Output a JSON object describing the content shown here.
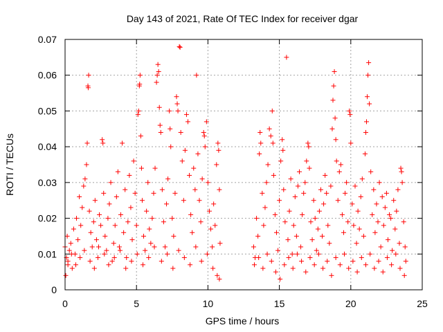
{
  "chart_data": {
    "type": "scatter",
    "title": "Day 143 of 2021, Rate Of TEC Index for receiver dgar",
    "xlabel": "GPS time / hours",
    "ylabel": "ROTI / TECUs",
    "xlim": [
      0,
      25
    ],
    "ylim": [
      0,
      0.07
    ],
    "x_ticks": [
      0,
      5,
      10,
      15,
      20,
      25
    ],
    "x_tick_labels": [
      "0",
      "5",
      "10",
      "15",
      "20",
      "25"
    ],
    "y_ticks": [
      0,
      0.01,
      0.02,
      0.03,
      0.04,
      0.05,
      0.06,
      0.07
    ],
    "y_tick_labels": [
      "0",
      "0.01",
      "0.02",
      "0.03",
      "0.04",
      "0.05",
      "0.06",
      "0.07"
    ],
    "grid": true,
    "marker": "+",
    "marker_color": "#ff0000",
    "series": [
      {
        "points": [
          [
            0.0,
            0.012
          ],
          [
            0.05,
            0.004
          ],
          [
            0.1,
            0.009
          ],
          [
            0.15,
            0.015
          ],
          [
            0.2,
            0.007
          ],
          [
            0.3,
            0.011
          ],
          [
            0.4,
            0.013
          ],
          [
            0.5,
            0.006
          ],
          [
            0.6,
            0.017
          ],
          [
            0.7,
            0.01
          ],
          [
            0.8,
            0.02
          ],
          [
            0.9,
            0.014
          ],
          [
            1.0,
            0.026
          ],
          [
            1.1,
            0.018
          ],
          [
            1.2,
            0.023
          ],
          [
            1.3,
            0.029
          ],
          [
            1.4,
            0.031
          ],
          [
            1.5,
            0.035
          ],
          [
            1.55,
            0.041
          ],
          [
            1.6,
            0.057
          ],
          [
            1.62,
            0.0565
          ],
          [
            1.65,
            0.06
          ],
          [
            1.7,
            0.022
          ],
          [
            1.8,
            0.016
          ],
          [
            1.9,
            0.012
          ],
          [
            2.0,
            0.019
          ],
          [
            2.1,
            0.025
          ],
          [
            2.2,
            0.014
          ],
          [
            2.3,
            0.009
          ],
          [
            2.4,
            0.021
          ],
          [
            2.5,
            0.018
          ],
          [
            2.6,
            0.042
          ],
          [
            2.65,
            0.041
          ],
          [
            2.7,
            0.027
          ],
          [
            2.8,
            0.015
          ],
          [
            2.9,
            0.011
          ],
          [
            3.0,
            0.02
          ],
          [
            3.1,
            0.024
          ],
          [
            3.2,
            0.03
          ],
          [
            3.3,
            0.008
          ],
          [
            3.4,
            0.013
          ],
          [
            3.5,
            0.018
          ],
          [
            3.6,
            0.026
          ],
          [
            3.7,
            0.033
          ],
          [
            3.8,
            0.012
          ],
          [
            3.9,
            0.021
          ],
          [
            4.0,
            0.041
          ],
          [
            4.1,
            0.016
          ],
          [
            4.2,
            0.028
          ],
          [
            4.3,
            0.009
          ],
          [
            4.4,
            0.019
          ],
          [
            4.5,
            0.032
          ],
          [
            4.6,
            0.023
          ],
          [
            4.7,
            0.014
          ],
          [
            4.8,
            0.036
          ],
          [
            4.9,
            0.027
          ],
          [
            5.0,
            0.018
          ],
          [
            5.1,
            0.049
          ],
          [
            5.15,
            0.05
          ],
          [
            5.2,
            0.057
          ],
          [
            5.22,
            0.0575
          ],
          [
            5.25,
            0.06
          ],
          [
            5.3,
            0.043
          ],
          [
            5.35,
            0.034
          ],
          [
            5.4,
            0.025
          ],
          [
            5.5,
            0.015
          ],
          [
            5.6,
            0.011
          ],
          [
            5.7,
            0.022
          ],
          [
            5.8,
            0.03
          ],
          [
            5.9,
            0.017
          ],
          [
            6.0,
            0.013
          ],
          [
            6.1,
            0.02
          ],
          [
            6.2,
            0.027
          ],
          [
            6.3,
            0.034
          ],
          [
            6.4,
            0.058
          ],
          [
            6.45,
            0.06
          ],
          [
            6.5,
            0.063
          ],
          [
            6.55,
            0.061
          ],
          [
            6.6,
            0.051
          ],
          [
            6.65,
            0.046
          ],
          [
            6.7,
            0.044
          ],
          [
            6.8,
            0.028
          ],
          [
            6.9,
            0.019
          ],
          [
            7.0,
            0.012
          ],
          [
            7.1,
            0.024
          ],
          [
            7.2,
            0.031
          ],
          [
            7.3,
            0.05
          ],
          [
            7.35,
            0.045
          ],
          [
            7.4,
            0.04
          ],
          [
            7.5,
            0.02
          ],
          [
            7.6,
            0.015
          ],
          [
            7.7,
            0.027
          ],
          [
            7.8,
            0.054
          ],
          [
            7.85,
            0.052
          ],
          [
            7.9,
            0.05
          ],
          [
            8.0,
            0.068
          ],
          [
            8.05,
            0.0678
          ],
          [
            8.1,
            0.044
          ],
          [
            8.2,
            0.036
          ],
          [
            8.3,
            0.025
          ],
          [
            8.4,
            0.039
          ],
          [
            8.5,
            0.049
          ],
          [
            8.6,
            0.047
          ],
          [
            8.7,
            0.032
          ],
          [
            8.8,
            0.021
          ],
          [
            8.9,
            0.016
          ],
          [
            9.0,
            0.034
          ],
          [
            9.1,
            0.028
          ],
          [
            9.2,
            0.06
          ],
          [
            9.3,
            0.038
          ],
          [
            9.4,
            0.025
          ],
          [
            9.5,
            0.019
          ],
          [
            9.6,
            0.031
          ],
          [
            9.7,
            0.044
          ],
          [
            9.75,
            0.043
          ],
          [
            9.8,
            0.04
          ],
          [
            9.9,
            0.047
          ],
          [
            10.0,
            0.03
          ],
          [
            10.1,
            0.022
          ],
          [
            10.2,
            0.017
          ],
          [
            10.3,
            0.012
          ],
          [
            10.4,
            0.024
          ],
          [
            10.5,
            0.018
          ],
          [
            10.6,
            0.035
          ],
          [
            10.7,
            0.041
          ],
          [
            10.75,
            0.039
          ],
          [
            10.8,
            0.028
          ],
          [
            10.85,
            0.013
          ],
          [
            0.2,
            0.008
          ],
          [
            0.45,
            0.01
          ],
          [
            0.75,
            0.007
          ],
          [
            1.05,
            0.009
          ],
          [
            1.35,
            0.011
          ],
          [
            1.75,
            0.008
          ],
          [
            2.05,
            0.006
          ],
          [
            2.35,
            0.012
          ],
          [
            2.75,
            0.01
          ],
          [
            3.05,
            0.007
          ],
          [
            3.45,
            0.009
          ],
          [
            3.85,
            0.011
          ],
          [
            4.25,
            0.006
          ],
          [
            4.65,
            0.008
          ],
          [
            5.05,
            0.01
          ],
          [
            5.45,
            0.007
          ],
          [
            5.85,
            0.009
          ],
          [
            6.25,
            0.012
          ],
          [
            6.75,
            0.008
          ],
          [
            7.15,
            0.01
          ],
          [
            7.55,
            0.006
          ],
          [
            7.95,
            0.011
          ],
          [
            8.35,
            0.009
          ],
          [
            8.75,
            0.007
          ],
          [
            9.15,
            0.012
          ],
          [
            9.55,
            0.008
          ],
          [
            9.95,
            0.01
          ],
          [
            10.35,
            0.006
          ],
          [
            10.65,
            0.004
          ],
          [
            10.8,
            0.003
          ],
          [
            13.2,
            0.012
          ],
          [
            13.3,
            0.009
          ],
          [
            13.4,
            0.02
          ],
          [
            13.5,
            0.015
          ],
          [
            13.6,
            0.038
          ],
          [
            13.65,
            0.044
          ],
          [
            13.7,
            0.041
          ],
          [
            13.8,
            0.027
          ],
          [
            13.9,
            0.018
          ],
          [
            14.0,
            0.023
          ],
          [
            14.1,
            0.03
          ],
          [
            14.2,
            0.035
          ],
          [
            14.3,
            0.045
          ],
          [
            14.4,
            0.043
          ],
          [
            14.5,
            0.05
          ],
          [
            14.55,
            0.041
          ],
          [
            14.6,
            0.032
          ],
          [
            14.7,
            0.021
          ],
          [
            14.8,
            0.016
          ],
          [
            14.9,
            0.011
          ],
          [
            15.0,
            0.025
          ],
          [
            15.1,
            0.036
          ],
          [
            15.2,
            0.042
          ],
          [
            15.25,
            0.039
          ],
          [
            15.3,
            0.028
          ],
          [
            15.4,
            0.019
          ],
          [
            15.5,
            0.065
          ],
          [
            15.6,
            0.014
          ],
          [
            15.7,
            0.022
          ],
          [
            15.8,
            0.031
          ],
          [
            15.9,
            0.01
          ],
          [
            16.0,
            0.018
          ],
          [
            16.1,
            0.026
          ],
          [
            16.2,
            0.015
          ],
          [
            16.3,
            0.029
          ],
          [
            16.4,
            0.033
          ],
          [
            16.5,
            0.012
          ],
          [
            16.6,
            0.021
          ],
          [
            16.7,
            0.027
          ],
          [
            16.8,
            0.03
          ],
          [
            16.9,
            0.036
          ],
          [
            17.0,
            0.041
          ],
          [
            17.05,
            0.04
          ],
          [
            17.1,
            0.034
          ],
          [
            17.2,
            0.019
          ],
          [
            17.3,
            0.014
          ],
          [
            17.4,
            0.025
          ],
          [
            17.5,
            0.02
          ],
          [
            17.6,
            0.011
          ],
          [
            17.7,
            0.017
          ],
          [
            17.8,
            0.022
          ],
          [
            17.9,
            0.028
          ],
          [
            18.0,
            0.015
          ],
          [
            18.1,
            0.024
          ],
          [
            18.2,
            0.032
          ],
          [
            18.3,
            0.027
          ],
          [
            18.4,
            0.018
          ],
          [
            18.5,
            0.013
          ],
          [
            18.6,
            0.029
          ],
          [
            18.7,
            0.045
          ],
          [
            18.75,
            0.053
          ],
          [
            18.8,
            0.057
          ],
          [
            18.85,
            0.061
          ],
          [
            18.9,
            0.048
          ],
          [
            18.95,
            0.042
          ],
          [
            19.0,
            0.036
          ],
          [
            19.1,
            0.025
          ],
          [
            19.2,
            0.033
          ],
          [
            19.3,
            0.035
          ],
          [
            19.4,
            0.021
          ],
          [
            19.5,
            0.016
          ],
          [
            19.6,
            0.027
          ],
          [
            19.7,
            0.03
          ],
          [
            19.8,
            0.019
          ],
          [
            19.9,
            0.05
          ],
          [
            19.95,
            0.049
          ],
          [
            20.0,
            0.041
          ],
          [
            20.1,
            0.024
          ],
          [
            20.2,
            0.018
          ],
          [
            20.3,
            0.029
          ],
          [
            20.4,
            0.013
          ],
          [
            20.5,
            0.022
          ],
          [
            20.6,
            0.017
          ],
          [
            20.7,
            0.026
          ],
          [
            20.8,
            0.031
          ],
          [
            20.9,
            0.015
          ],
          [
            21.0,
            0.038
          ],
          [
            21.05,
            0.044
          ],
          [
            21.1,
            0.047
          ],
          [
            21.15,
            0.054
          ],
          [
            21.2,
            0.06
          ],
          [
            21.25,
            0.0635
          ],
          [
            21.3,
            0.052
          ],
          [
            21.4,
            0.033
          ],
          [
            21.5,
            0.021
          ],
          [
            21.6,
            0.028
          ],
          [
            21.7,
            0.016
          ],
          [
            21.8,
            0.024
          ],
          [
            21.9,
            0.019
          ],
          [
            22.0,
            0.03
          ],
          [
            22.1,
            0.012
          ],
          [
            22.2,
            0.026
          ],
          [
            22.3,
            0.018
          ],
          [
            22.4,
            0.023
          ],
          [
            22.5,
            0.027
          ],
          [
            22.6,
            0.014
          ],
          [
            22.7,
            0.021
          ],
          [
            22.8,
            0.02
          ],
          [
            22.9,
            0.011
          ],
          [
            23.0,
            0.025
          ],
          [
            23.1,
            0.017
          ],
          [
            23.2,
            0.022
          ],
          [
            23.3,
            0.028
          ],
          [
            23.4,
            0.013
          ],
          [
            23.5,
            0.034
          ],
          [
            23.55,
            0.033
          ],
          [
            23.6,
            0.03
          ],
          [
            23.7,
            0.019
          ],
          [
            23.8,
            0.012
          ],
          [
            13.25,
            0.007
          ],
          [
            13.55,
            0.009
          ],
          [
            13.85,
            0.006
          ],
          [
            14.15,
            0.01
          ],
          [
            14.45,
            0.008
          ],
          [
            14.75,
            0.005
          ],
          [
            15.05,
            0.003
          ],
          [
            15.35,
            0.007
          ],
          [
            15.65,
            0.009
          ],
          [
            15.95,
            0.006
          ],
          [
            16.25,
            0.01
          ],
          [
            16.55,
            0.008
          ],
          [
            16.85,
            0.005
          ],
          [
            17.15,
            0.009
          ],
          [
            17.45,
            0.007
          ],
          [
            17.75,
            0.01
          ],
          [
            18.05,
            0.006
          ],
          [
            18.35,
            0.008
          ],
          [
            18.65,
            0.004
          ],
          [
            18.95,
            0.009
          ],
          [
            19.25,
            0.007
          ],
          [
            19.55,
            0.01
          ],
          [
            19.85,
            0.006
          ],
          [
            20.15,
            0.008
          ],
          [
            20.45,
            0.005
          ],
          [
            20.75,
            0.009
          ],
          [
            21.05,
            0.007
          ],
          [
            21.35,
            0.01
          ],
          [
            21.65,
            0.006
          ],
          [
            21.95,
            0.008
          ],
          [
            22.25,
            0.005
          ],
          [
            22.55,
            0.009
          ],
          [
            22.85,
            0.007
          ],
          [
            23.15,
            0.01
          ],
          [
            23.45,
            0.006
          ],
          [
            23.75,
            0.004
          ],
          [
            23.85,
            0.008
          ]
        ]
      }
    ]
  }
}
